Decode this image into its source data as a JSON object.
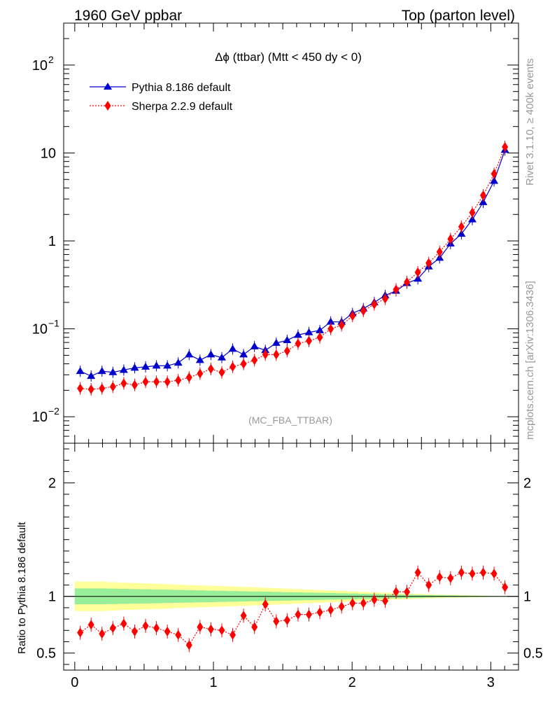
{
  "header": {
    "left_title": "1960 GeV ppbar",
    "right_title": "Top (parton level)"
  },
  "plot_title": "Δϕ (ttbar) (Mtt < 450 dy < 0)",
  "analysis_tag": "(MC_FBA_TTBAR)",
  "side_labels": {
    "rivet": "Rivet 3.1.10, ≥ 400k events",
    "mcplots": "mcplots.cern.ch [arXiv:1306.3436]"
  },
  "colors": {
    "pythia": "#0000cc",
    "sherpa": "#ff0000",
    "band_inner": "#99ee99",
    "band_outer": "#ffff99"
  },
  "chart_data": [
    {
      "type": "line",
      "panel": "main",
      "xlim": [
        -0.08,
        3.2
      ],
      "ylim": [
        0.005,
        300
      ],
      "yscale": "log",
      "y_ticks": [
        {
          "value": 100,
          "base": "10",
          "exp": "2"
        },
        {
          "value": 10,
          "base": "10",
          "exp": ""
        },
        {
          "value": 1,
          "base": "1",
          "exp": ""
        },
        {
          "value": 0.1,
          "base": "10",
          "exp": "−1"
        },
        {
          "value": 0.01,
          "base": "10",
          "exp": "−2"
        }
      ],
      "legend_position": "top-left",
      "x": [
        0.0393,
        0.1178,
        0.1963,
        0.2749,
        0.3534,
        0.432,
        0.5105,
        0.589,
        0.6676,
        0.7461,
        0.8247,
        0.9032,
        0.9817,
        1.0603,
        1.1388,
        1.2174,
        1.2959,
        1.3744,
        1.453,
        1.5315,
        1.6101,
        1.6886,
        1.7671,
        1.8457,
        1.9242,
        2.0028,
        2.0813,
        2.1598,
        2.2384,
        2.3169,
        2.3955,
        2.474,
        2.5525,
        2.6311,
        2.7096,
        2.7882,
        2.8667,
        2.9452,
        3.0238,
        3.1023
      ],
      "series": [
        {
          "name": "Pythia 8.186 default",
          "marker": "triangle",
          "line": "solid",
          "values": [
            0.033,
            0.029,
            0.033,
            0.032,
            0.034,
            0.036,
            0.037,
            0.038,
            0.038,
            0.041,
            0.051,
            0.044,
            0.051,
            0.047,
            0.059,
            0.051,
            0.063,
            0.057,
            0.069,
            0.074,
            0.085,
            0.091,
            0.096,
            0.12,
            0.12,
            0.15,
            0.17,
            0.2,
            0.24,
            0.27,
            0.33,
            0.37,
            0.51,
            0.64,
            0.93,
            1.2,
            1.75,
            2.75,
            4.8,
            10.8
          ]
        },
        {
          "name": "Sherpa 2.2.9 default",
          "marker": "diamond",
          "line": "dotted",
          "values": [
            0.021,
            0.0205,
            0.021,
            0.022,
            0.024,
            0.023,
            0.025,
            0.025,
            0.025,
            0.026,
            0.028,
            0.031,
            0.035,
            0.032,
            0.037,
            0.04,
            0.044,
            0.051,
            0.051,
            0.056,
            0.068,
            0.073,
            0.08,
            0.1,
            0.11,
            0.14,
            0.16,
            0.19,
            0.22,
            0.28,
            0.34,
            0.44,
            0.56,
            0.75,
            1.05,
            1.45,
            2.1,
            3.3,
            5.8,
            11.7
          ]
        }
      ]
    },
    {
      "type": "line",
      "panel": "ratio",
      "ylabel": "Ratio to Pythia 8.186 default",
      "xlim": [
        -0.08,
        3.2
      ],
      "ylim": [
        0.35,
        2.35
      ],
      "x_ticks": [
        0,
        1,
        2,
        3
      ],
      "y_ticks": [
        0.5,
        1,
        2
      ],
      "reference_line": 1,
      "x": [
        0.0393,
        0.1178,
        0.1963,
        0.2749,
        0.3534,
        0.432,
        0.5105,
        0.589,
        0.6676,
        0.7461,
        0.8247,
        0.9032,
        0.9817,
        1.0603,
        1.1388,
        1.2174,
        1.2959,
        1.3744,
        1.453,
        1.5315,
        1.6101,
        1.6886,
        1.7671,
        1.8457,
        1.9242,
        2.0028,
        2.0813,
        2.1598,
        2.2384,
        2.3169,
        2.3955,
        2.474,
        2.5525,
        2.6311,
        2.7096,
        2.7882,
        2.8667,
        2.9452,
        3.0238,
        3.1023
      ],
      "bands": {
        "inner_half_width": [
          0.07,
          0.07,
          0.07,
          0.068,
          0.066,
          0.064,
          0.063,
          0.061,
          0.059,
          0.057,
          0.055,
          0.053,
          0.051,
          0.049,
          0.047,
          0.045,
          0.043,
          0.041,
          0.039,
          0.037,
          0.035,
          0.033,
          0.031,
          0.029,
          0.027,
          0.025,
          0.023,
          0.021,
          0.019,
          0.017,
          0.015,
          0.013,
          0.011,
          0.009,
          0.008,
          0.007,
          0.006,
          0.005,
          0.004,
          0.003
        ],
        "outer_half_width": [
          0.13,
          0.13,
          0.13,
          0.125,
          0.12,
          0.118,
          0.115,
          0.112,
          0.108,
          0.104,
          0.1,
          0.097,
          0.094,
          0.091,
          0.088,
          0.084,
          0.08,
          0.076,
          0.072,
          0.068,
          0.064,
          0.06,
          0.056,
          0.052,
          0.048,
          0.044,
          0.04,
          0.036,
          0.032,
          0.028,
          0.025,
          0.022,
          0.019,
          0.016,
          0.013,
          0.011,
          0.009,
          0.007,
          0.005,
          0.004
        ]
      },
      "series": [
        {
          "name": "Sherpa 2.2.9 default",
          "values": [
            0.68,
            0.75,
            0.67,
            0.72,
            0.76,
            0.69,
            0.74,
            0.72,
            0.69,
            0.66,
            0.57,
            0.73,
            0.71,
            0.7,
            0.66,
            0.83,
            0.73,
            0.93,
            0.78,
            0.79,
            0.84,
            0.84,
            0.86,
            0.88,
            0.91,
            0.94,
            0.94,
            0.97,
            0.96,
            1.04,
            1.04,
            1.21,
            1.1,
            1.17,
            1.16,
            1.21,
            1.2,
            1.21,
            1.2,
            1.08
          ]
        }
      ]
    }
  ]
}
